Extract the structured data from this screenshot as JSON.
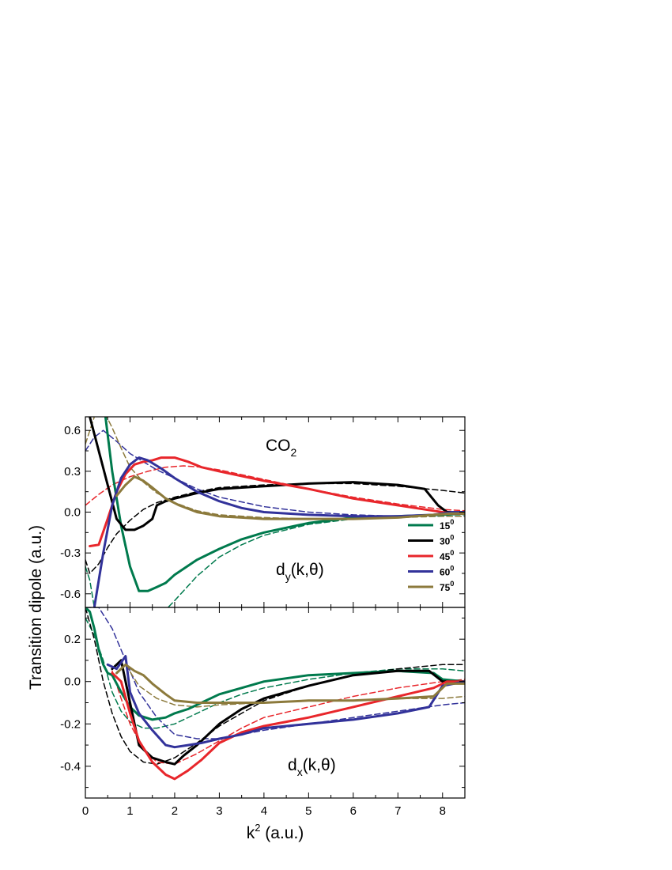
{
  "chart_data": {
    "type": "line",
    "xlabel": "k",
    "xlabel_sup": "2",
    "xlabel_unit": " (a.u.)",
    "ylabel": "Transition dipole (a.u.)",
    "xlim": [
      0,
      8.5
    ],
    "x_ticks": [
      "0",
      "1",
      "2",
      "3",
      "4",
      "5",
      "6",
      "7",
      "8"
    ],
    "legend_position": "right side of top panel",
    "series_styles": [
      {
        "name": "15",
        "sup": "0",
        "color": "#007a4d"
      },
      {
        "name": "30",
        "sup": "0",
        "color": "#000000"
      },
      {
        "name": "45",
        "sup": "0",
        "color": "#e8262b"
      },
      {
        "name": "60",
        "sup": "0",
        "color": "#32329a"
      },
      {
        "name": "75",
        "sup": "0",
        "color": "#8c7a3c"
      }
    ],
    "panels": [
      {
        "id": "top",
        "title": "CO",
        "title_sub": "2",
        "annotation": "d",
        "annotation_sub": "y",
        "annotation_rest": "(k,θ)",
        "ylim": [
          -0.7,
          0.7
        ],
        "y_ticks": [
          "0.6",
          "0.3",
          "0.0",
          "-0.3",
          "-0.6"
        ],
        "series_solid": [
          {
            "name": "15",
            "x": [
              0.45,
              0.6,
              0.8,
              1.0,
              1.2,
              1.4,
              1.6,
              1.8,
              2.0,
              2.5,
              3.0,
              3.5,
              4.0,
              5.0,
              6.0,
              7.0,
              8.0,
              8.5
            ],
            "y": [
              0.7,
              0.3,
              -0.1,
              -0.4,
              -0.58,
              -0.58,
              -0.55,
              -0.52,
              -0.46,
              -0.35,
              -0.27,
              -0.2,
              -0.15,
              -0.08,
              -0.04,
              -0.03,
              -0.02,
              -0.01
            ]
          },
          {
            "name": "30",
            "x": [
              0.1,
              0.3,
              0.5,
              0.7,
              0.9,
              1.1,
              1.3,
              1.5,
              1.6,
              1.8,
              2.0,
              2.5,
              3.0,
              4.0,
              5.0,
              6.0,
              7.0,
              7.6,
              7.9,
              8.1,
              8.5
            ],
            "y": [
              0.7,
              0.45,
              0.2,
              -0.05,
              -0.13,
              -0.13,
              -0.1,
              -0.05,
              0.05,
              0.08,
              0.1,
              0.14,
              0.17,
              0.19,
              0.21,
              0.22,
              0.2,
              0.17,
              0.05,
              0.0,
              0.0
            ]
          },
          {
            "name": "45",
            "x": [
              0.1,
              0.3,
              0.5,
              0.7,
              0.9,
              1.1,
              1.3,
              1.5,
              1.7,
              2.0,
              2.3,
              2.6,
              3.0,
              4.0,
              5.0,
              6.0,
              7.0,
              7.8,
              8.2,
              8.5
            ],
            "y": [
              -0.25,
              -0.24,
              -0.05,
              0.15,
              0.28,
              0.35,
              0.37,
              0.38,
              0.4,
              0.4,
              0.37,
              0.33,
              0.3,
              0.23,
              0.17,
              0.1,
              0.05,
              0.01,
              -0.01,
              -0.01
            ]
          },
          {
            "name": "60",
            "x": [
              0.2,
              0.4,
              0.6,
              0.8,
              1.0,
              1.2,
              1.4,
              1.7,
              2.0,
              2.5,
              3.0,
              3.5,
              4.0,
              5.0,
              6.0,
              7.0,
              7.8,
              8.2,
              8.5
            ],
            "y": [
              -0.7,
              -0.3,
              0.05,
              0.25,
              0.35,
              0.4,
              0.38,
              0.32,
              0.25,
              0.15,
              0.08,
              0.03,
              0.0,
              -0.02,
              -0.03,
              -0.03,
              -0.02,
              0.0,
              0.0
            ]
          },
          {
            "name": "75",
            "x": [
              0.7,
              0.9,
              1.1,
              1.3,
              1.5,
              1.8,
              2.1,
              2.5,
              3.0,
              3.5,
              4.0,
              5.0,
              6.0,
              7.0,
              7.8,
              8.2,
              8.5
            ],
            "y": [
              0.12,
              0.2,
              0.26,
              0.23,
              0.18,
              0.1,
              0.05,
              0.0,
              -0.03,
              -0.04,
              -0.05,
              -0.05,
              -0.05,
              -0.04,
              -0.02,
              -0.01,
              -0.01
            ]
          }
        ],
        "series_dashed": [
          {
            "name": "15",
            "x": [
              0.0,
              0.1,
              0.2,
              0.4,
              0.7,
              1.0,
              1.5,
              2.0,
              2.5,
              3.0,
              3.5,
              4.0,
              5.0,
              6.0,
              7.0,
              8.0,
              8.5
            ],
            "y": [
              -0.4,
              -0.5,
              -0.7,
              -0.9,
              -1.0,
              -0.95,
              -0.82,
              -0.65,
              -0.47,
              -0.33,
              -0.24,
              -0.17,
              -0.09,
              -0.05,
              -0.03,
              -0.02,
              -0.02
            ]
          },
          {
            "name": "30",
            "x": [
              0.0,
              0.1,
              0.3,
              0.5,
              0.7,
              1.0,
              1.3,
              1.6,
              2.0,
              2.5,
              3.0,
              4.0,
              5.0,
              6.0,
              7.0,
              8.0,
              8.5
            ],
            "y": [
              -0.35,
              -0.45,
              -0.38,
              -0.26,
              -0.16,
              -0.06,
              0.02,
              0.07,
              0.11,
              0.15,
              0.18,
              0.2,
              0.21,
              0.21,
              0.19,
              0.16,
              0.14
            ]
          },
          {
            "name": "45",
            "x": [
              0.0,
              0.3,
              0.6,
              1.0,
              1.4,
              1.8,
              2.2,
              2.6,
              3.0,
              4.0,
              5.0,
              6.0,
              7.0,
              8.0,
              8.5
            ],
            "y": [
              0.05,
              0.13,
              0.2,
              0.26,
              0.3,
              0.33,
              0.34,
              0.33,
              0.31,
              0.24,
              0.17,
              0.11,
              0.06,
              0.02,
              0.01
            ]
          },
          {
            "name": "60",
            "x": [
              0.0,
              0.2,
              0.4,
              0.7,
              1.0,
              1.3,
              1.6,
              2.0,
              2.5,
              3.0,
              4.0,
              5.0,
              6.0,
              7.0,
              8.0,
              8.5
            ],
            "y": [
              0.45,
              0.55,
              0.6,
              0.52,
              0.43,
              0.37,
              0.31,
              0.25,
              0.17,
              0.11,
              0.04,
              0.0,
              -0.02,
              -0.03,
              -0.03,
              -0.03
            ]
          },
          {
            "name": "75",
            "x": [
              0.0,
              0.2,
              0.4,
              0.6,
              0.8,
              1.0,
              1.3,
              1.6,
              2.0,
              2.5,
              3.0,
              4.0,
              5.0,
              6.0,
              7.0,
              8.0,
              8.5
            ],
            "y": [
              0.5,
              0.7,
              0.75,
              0.62,
              0.47,
              0.33,
              0.22,
              0.14,
              0.07,
              0.01,
              -0.02,
              -0.04,
              -0.05,
              -0.05,
              -0.04,
              -0.03,
              -0.03
            ]
          }
        ]
      },
      {
        "id": "bottom",
        "annotation": "d",
        "annotation_sub": "x",
        "annotation_rest": "(k,θ)",
        "ylim": [
          -0.55,
          0.35
        ],
        "y_ticks": [
          "0.2",
          "0.0",
          "-0.2",
          "-0.4"
        ],
        "series_solid": [
          {
            "name": "15",
            "x": [
              0.0,
              0.1,
              0.2,
              0.3,
              0.4,
              0.5,
              0.6,
              0.8,
              1.0,
              1.2,
              1.5,
              1.8,
              2.0,
              2.3,
              2.6,
              3.0,
              3.5,
              4.0,
              5.0,
              6.0,
              7.0,
              7.8,
              8.0,
              8.5
            ],
            "y": [
              0.35,
              0.33,
              0.25,
              0.15,
              0.08,
              0.04,
              0.03,
              -0.05,
              -0.12,
              -0.16,
              -0.18,
              -0.17,
              -0.15,
              -0.13,
              -0.1,
              -0.06,
              -0.03,
              0.0,
              0.03,
              0.04,
              0.05,
              0.04,
              0.01,
              0.0
            ]
          },
          {
            "name": "30",
            "x": [
              0.6,
              0.8,
              1.0,
              1.2,
              1.5,
              1.8,
              2.0,
              2.2,
              2.5,
              3.0,
              3.5,
              4.0,
              5.0,
              6.0,
              7.0,
              7.7,
              8.0,
              8.5
            ],
            "y": [
              0.06,
              0.1,
              -0.1,
              -0.3,
              -0.36,
              -0.38,
              -0.39,
              -0.35,
              -0.3,
              -0.2,
              -0.13,
              -0.08,
              -0.02,
              0.03,
              0.05,
              0.05,
              0.0,
              0.0
            ]
          },
          {
            "name": "45",
            "x": [
              0.6,
              0.8,
              1.0,
              1.2,
              1.5,
              1.8,
              2.0,
              2.3,
              2.6,
              3.0,
              3.5,
              4.0,
              5.0,
              6.0,
              7.0,
              7.8,
              8.1,
              8.5
            ],
            "y": [
              0.04,
              0.0,
              -0.15,
              -0.28,
              -0.38,
              -0.44,
              -0.46,
              -0.42,
              -0.37,
              -0.29,
              -0.24,
              -0.21,
              -0.17,
              -0.12,
              -0.07,
              -0.03,
              0.0,
              0.0
            ]
          },
          {
            "name": "60",
            "x": [
              0.5,
              0.7,
              0.9,
              1.0,
              1.2,
              1.5,
              1.8,
              2.0,
              2.3,
              2.6,
              3.0,
              3.5,
              4.0,
              5.0,
              6.0,
              7.0,
              7.7,
              8.0,
              8.5
            ],
            "y": [
              0.08,
              0.06,
              0.12,
              -0.05,
              -0.15,
              -0.23,
              -0.3,
              -0.31,
              -0.3,
              -0.29,
              -0.27,
              -0.25,
              -0.22,
              -0.2,
              -0.18,
              -0.15,
              -0.12,
              -0.02,
              0.0
            ]
          },
          {
            "name": "75",
            "x": [
              0.7,
              0.9,
              1.1,
              1.3,
              1.5,
              1.8,
              2.0,
              2.5,
              3.0,
              4.0,
              5.0,
              6.0,
              7.0,
              7.8,
              8.1,
              8.5
            ],
            "y": [
              0.04,
              0.08,
              0.05,
              0.03,
              -0.01,
              -0.06,
              -0.09,
              -0.1,
              -0.1,
              -0.1,
              -0.09,
              -0.09,
              -0.08,
              -0.07,
              -0.01,
              -0.01
            ]
          }
        ],
        "series_dashed": [
          {
            "name": "15",
            "x": [
              0.0,
              0.2,
              0.4,
              0.6,
              0.8,
              1.0,
              1.3,
              1.6,
              2.0,
              2.5,
              3.0,
              3.5,
              4.0,
              5.0,
              6.0,
              7.0,
              8.0,
              8.5
            ],
            "y": [
              0.3,
              0.22,
              0.1,
              -0.05,
              -0.14,
              -0.19,
              -0.22,
              -0.22,
              -0.2,
              -0.15,
              -0.1,
              -0.06,
              -0.03,
              0.01,
              0.04,
              0.06,
              0.06,
              0.05
            ]
          },
          {
            "name": "30",
            "x": [
              0.0,
              0.2,
              0.4,
              0.6,
              0.8,
              1.0,
              1.3,
              1.6,
              2.0,
              2.5,
              3.0,
              3.5,
              4.0,
              5.0,
              6.0,
              7.0,
              8.0,
              8.5
            ],
            "y": [
              0.35,
              0.2,
              0.0,
              -0.15,
              -0.26,
              -0.33,
              -0.38,
              -0.39,
              -0.36,
              -0.29,
              -0.21,
              -0.15,
              -0.09,
              -0.02,
              0.03,
              0.06,
              0.08,
              0.08
            ]
          },
          {
            "name": "45",
            "x": [
              0.6,
              0.8,
              1.0,
              1.3,
              1.6,
              2.0,
              2.5,
              3.0,
              3.5,
              4.0,
              5.0,
              6.0,
              7.0,
              8.0,
              8.5
            ],
            "y": [
              0.05,
              -0.08,
              -0.2,
              -0.32,
              -0.38,
              -0.39,
              -0.34,
              -0.28,
              -0.22,
              -0.17,
              -0.12,
              -0.07,
              -0.03,
              0.0,
              0.01
            ]
          },
          {
            "name": "60",
            "x": [
              0.0,
              0.3,
              0.6,
              0.9,
              1.2,
              1.6,
              2.0,
              2.5,
              3.0,
              3.5,
              4.0,
              5.0,
              6.0,
              7.0,
              8.0,
              8.5
            ],
            "y": [
              0.35,
              0.35,
              0.25,
              0.1,
              -0.05,
              -0.17,
              -0.25,
              -0.27,
              -0.27,
              -0.25,
              -0.23,
              -0.2,
              -0.17,
              -0.14,
              -0.11,
              -0.1
            ]
          },
          {
            "name": "75",
            "x": [
              0.9,
              1.2,
              1.6,
              2.0,
              2.5,
              3.0,
              4.0,
              5.0,
              6.0,
              7.0,
              8.0,
              8.5
            ],
            "y": [
              0.08,
              -0.02,
              -0.08,
              -0.11,
              -0.12,
              -0.11,
              -0.1,
              -0.09,
              -0.09,
              -0.08,
              -0.08,
              -0.07
            ]
          }
        ]
      }
    ]
  }
}
